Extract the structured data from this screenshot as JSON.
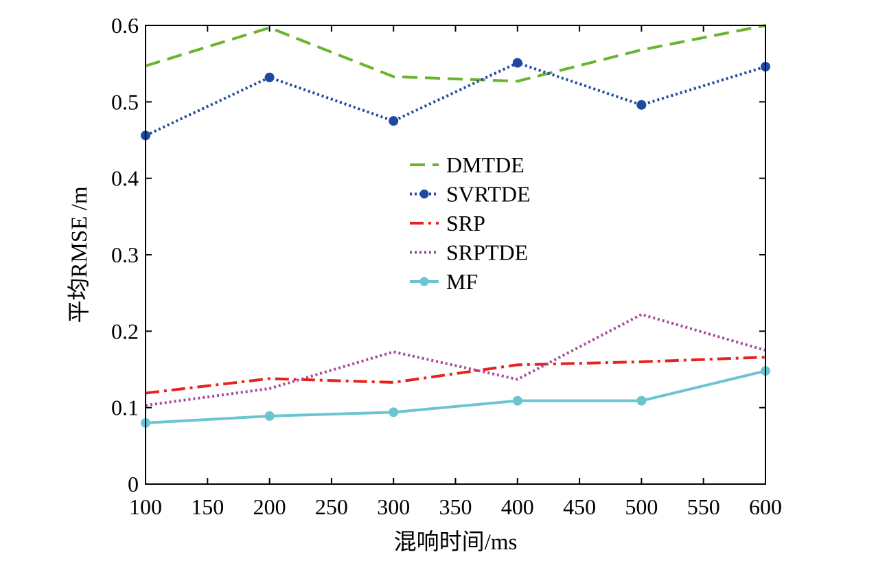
{
  "chart_data": {
    "type": "line",
    "xlabel": "混响时间/ms",
    "ylabel": "平均RMSE /m",
    "xlim": [
      100,
      600
    ],
    "ylim": [
      0,
      0.6
    ],
    "xticks": [
      100,
      150,
      200,
      250,
      300,
      350,
      400,
      450,
      500,
      550,
      600
    ],
    "yticks": [
      0,
      0.1,
      0.2,
      0.3,
      0.4,
      0.5,
      0.6
    ],
    "ytick_labels": [
      "0",
      "0.1",
      "0.2",
      "0.3",
      "0.4",
      "0.5",
      "0.6"
    ],
    "grid": false,
    "legend_position": "center",
    "x": [
      100,
      200,
      300,
      400,
      500,
      600
    ],
    "series": [
      {
        "name": "DMTDE",
        "values": [
          0.547,
          0.597,
          0.533,
          0.527,
          0.568,
          0.6
        ],
        "color": "#6ab42d",
        "dash": "dashed",
        "marker": "none"
      },
      {
        "name": "SVRTDE",
        "values": [
          0.456,
          0.532,
          0.475,
          0.551,
          0.496,
          0.546
        ],
        "color": "#1f48a0",
        "dash": "dotted",
        "marker": "circle"
      },
      {
        "name": "SRP",
        "values": [
          0.119,
          0.138,
          0.133,
          0.156,
          0.16,
          0.166
        ],
        "color": "#e8211c",
        "dash": "dashdot",
        "marker": "none"
      },
      {
        "name": "SRPTDE",
        "values": [
          0.103,
          0.125,
          0.173,
          0.137,
          0.222,
          0.175
        ],
        "color": "#a6489a",
        "dash": "dotted",
        "marker": "none"
      },
      {
        "name": "MF",
        "values": [
          0.08,
          0.089,
          0.094,
          0.109,
          0.109,
          0.148
        ],
        "color": "#6cc4d0",
        "dash": "solid",
        "marker": "circle"
      }
    ]
  }
}
